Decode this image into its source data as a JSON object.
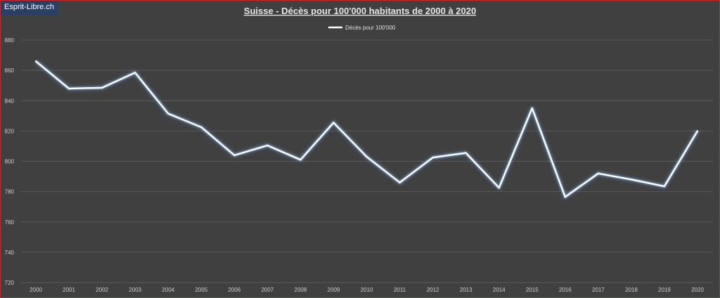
{
  "watermark": "Esprit-Libre.ch",
  "chart_data": {
    "type": "line",
    "title": "Suisse - Décès pour 100'000  habitants de 2000  à 2020",
    "xlabel": "",
    "ylabel": "",
    "categories": [
      "2000",
      "2001",
      "2002",
      "2003",
      "2004",
      "2005",
      "2006",
      "2007",
      "2008",
      "2009",
      "2010",
      "2011",
      "2012",
      "2013",
      "2014",
      "2015",
      "2016",
      "2017",
      "2018",
      "2019",
      "2020"
    ],
    "series": [
      {
        "name": "Décès pour 100'000",
        "values": [
          866,
          848,
          848.5,
          858.5,
          831.5,
          822.5,
          804,
          810.5,
          801,
          825.5,
          803,
          786,
          802.5,
          805.5,
          782.5,
          835,
          776.5,
          792,
          788,
          783.5,
          820
        ]
      }
    ],
    "ylim": [
      720,
      880
    ],
    "yticks": [
      720,
      740,
      760,
      780,
      800,
      820,
      840,
      860,
      880
    ],
    "grid": true,
    "legend_position": "top-center",
    "colors": {
      "background": "#404040",
      "line": "#ffffff",
      "glow": "#6e9fd6",
      "grid": "#5a5a5a",
      "text": "#cfcfcf"
    }
  }
}
